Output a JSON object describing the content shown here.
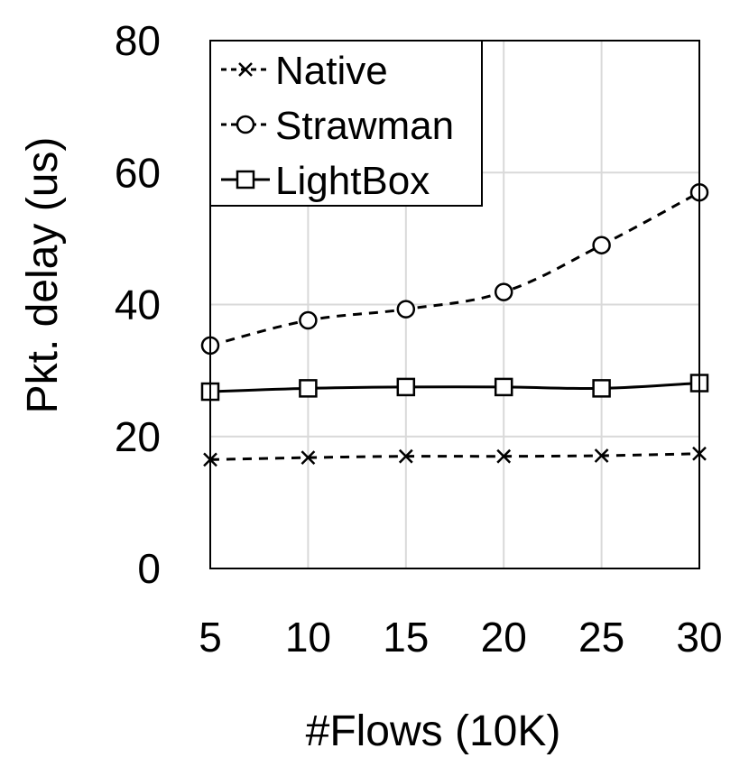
{
  "chart_data": {
    "type": "line",
    "title": "",
    "xlabel": "#Flows (10K)",
    "ylabel": "Pkt. delay (us)",
    "categories": [
      5,
      10,
      15,
      20,
      25,
      30
    ],
    "xlim": [
      5,
      30
    ],
    "ylim": [
      0,
      80
    ],
    "yticks": [
      0,
      20,
      40,
      60,
      80
    ],
    "grid": true,
    "legend_position": "top-left",
    "series": [
      {
        "name": "Native",
        "marker": "x",
        "line_style": "dashed",
        "color": "#000000",
        "values": [
          16.5,
          16.8,
          17.0,
          17.0,
          17.1,
          17.4
        ]
      },
      {
        "name": "Strawman",
        "marker": "circle",
        "line_style": "dashed",
        "color": "#000000",
        "values": [
          33.8,
          37.6,
          39.3,
          41.9,
          49.0,
          57.0
        ]
      },
      {
        "name": "LightBox",
        "marker": "square",
        "line_style": "solid",
        "color": "#000000",
        "values": [
          26.8,
          27.3,
          27.5,
          27.5,
          27.3,
          28.1
        ]
      }
    ]
  }
}
